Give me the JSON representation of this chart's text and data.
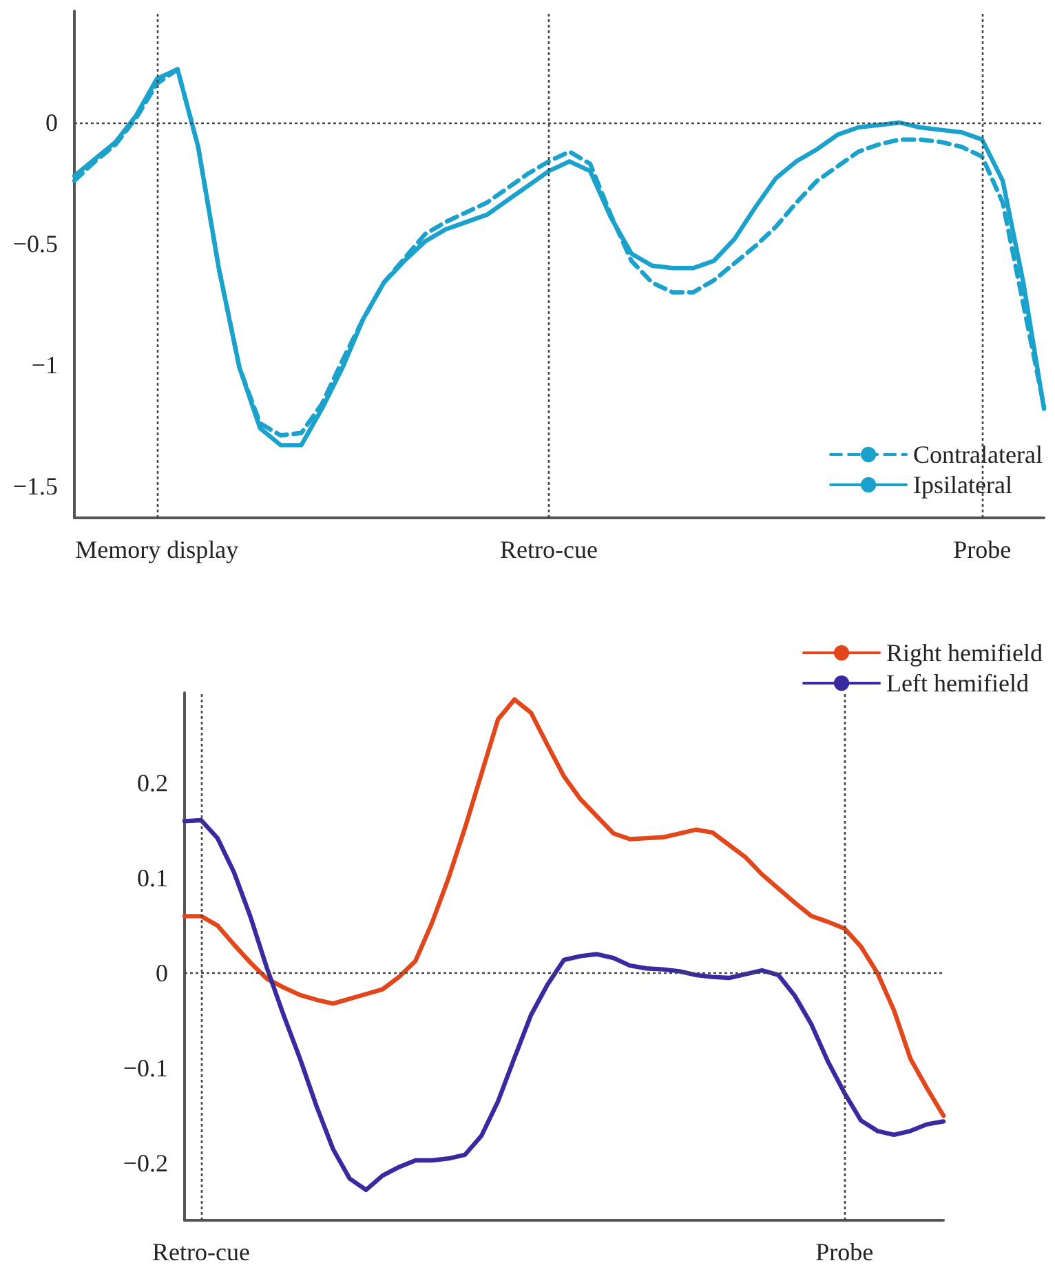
{
  "chart_data": [
    {
      "type": "line",
      "ylim": [
        -1.63,
        0.46
      ],
      "yticks": [
        {
          "value": -1.5,
          "label": "−1.5"
        },
        {
          "value": -1,
          "label": "−1"
        },
        {
          "value": -0.5,
          "label": "−0.5"
        },
        0
      ],
      "grid": false,
      "marker": "none",
      "legend": "bottom right",
      "categories": [
        null,
        null,
        null,
        null,
        "Memory display",
        null,
        null,
        null,
        null,
        null,
        null,
        null,
        null,
        null,
        null,
        null,
        null,
        null,
        null,
        null,
        null,
        null,
        null,
        "Retro-cue",
        null,
        null,
        null,
        null,
        null,
        null,
        null,
        null,
        null,
        null,
        null,
        null,
        null,
        null,
        null,
        null,
        null,
        null,
        null,
        null,
        "Probe",
        null,
        null,
        null
      ],
      "ref_lines": [
        {
          "axis": "x",
          "value": "Memory display"
        },
        {
          "axis": "x",
          "value": "Retro-cue"
        },
        {
          "axis": "x",
          "value": "Probe"
        },
        {
          "axis": "y",
          "value": 0
        }
      ],
      "series": [
        {
          "name": "Contralateral",
          "color": "#1aa2cd",
          "line_style": "dashed",
          "values": [
            -0.24,
            -0.16,
            -0.09,
            0.02,
            0.16,
            0.22,
            -0.1,
            -0.6,
            -1.01,
            -1.24,
            -1.29,
            -1.28,
            -1.16,
            -0.98,
            -0.81,
            -0.66,
            -0.56,
            -0.46,
            -0.41,
            -0.37,
            -0.33,
            -0.27,
            -0.21,
            -0.16,
            -0.12,
            -0.17,
            -0.38,
            -0.57,
            -0.66,
            -0.7,
            -0.7,
            -0.65,
            -0.58,
            -0.51,
            -0.43,
            -0.33,
            -0.24,
            -0.18,
            -0.12,
            -0.09,
            -0.07,
            -0.07,
            -0.08,
            -0.1,
            -0.14,
            -0.33,
            -0.75,
            -1.17
          ]
        },
        {
          "name": "Ipsilateral",
          "color": "#1aa2cd",
          "line_style": "solid",
          "values": [
            -0.22,
            -0.15,
            -0.08,
            0.03,
            0.18,
            0.22,
            -0.1,
            -0.6,
            -1.01,
            -1.26,
            -1.33,
            -1.33,
            -1.18,
            -1.01,
            -0.81,
            -0.66,
            -0.57,
            -0.49,
            -0.44,
            -0.41,
            -0.38,
            -0.32,
            -0.26,
            -0.2,
            -0.16,
            -0.2,
            -0.39,
            -0.54,
            -0.59,
            -0.6,
            -0.6,
            -0.57,
            -0.48,
            -0.35,
            -0.23,
            -0.16,
            -0.11,
            -0.05,
            -0.02,
            -0.01,
            0,
            -0.02,
            -0.03,
            -0.04,
            -0.07,
            -0.24,
            -0.66,
            -1.18
          ]
        }
      ]
    },
    {
      "type": "line",
      "ylim": [
        -0.26,
        0.295
      ],
      "yticks": [
        {
          "value": -0.2,
          "label": "−0.2"
        },
        {
          "value": -0.1,
          "label": "−0.1"
        },
        0,
        0.1,
        0.2
      ],
      "grid": false,
      "marker": "none",
      "legend": "top right",
      "categories": [
        null,
        "Retro-cue",
        null,
        null,
        null,
        null,
        null,
        null,
        null,
        null,
        null,
        null,
        null,
        null,
        null,
        null,
        null,
        null,
        null,
        null,
        null,
        null,
        null,
        null,
        null,
        null,
        null,
        null,
        null,
        null,
        null,
        null,
        null,
        null,
        null,
        null,
        null,
        null,
        null,
        null,
        "Probe",
        null,
        null,
        null,
        null,
        null,
        null
      ],
      "ref_lines": [
        {
          "axis": "x",
          "value": "Retro-cue"
        },
        {
          "axis": "x",
          "value": "Probe"
        },
        {
          "axis": "y",
          "value": 0
        }
      ],
      "series": [
        {
          "name": "Right hemifield",
          "color": "#e2461b",
          "line_style": "solid",
          "values": [
            0.06,
            0.06,
            0.05,
            0.03,
            0.011,
            -0.006,
            -0.015,
            -0.023,
            -0.028,
            -0.032,
            -0.027,
            -0.022,
            -0.017,
            -0.004,
            0.013,
            0.053,
            0.1,
            0.153,
            0.21,
            0.267,
            0.288,
            0.274,
            0.24,
            0.207,
            0.183,
            0.165,
            0.147,
            0.141,
            0.142,
            0.143,
            0.147,
            0.151,
            0.148,
            0.135,
            0.122,
            0.104,
            0.089,
            0.074,
            0.06,
            0.054,
            0.047,
            0.028,
            0,
            -0.039,
            -0.09,
            -0.121,
            -0.15
          ]
        },
        {
          "name": "Left hemifield",
          "color": "#3a2aa0",
          "line_style": "solid",
          "values": [
            0.16,
            0.161,
            0.142,
            0.106,
            0.059,
            0.005,
            -0.044,
            -0.09,
            -0.14,
            -0.185,
            -0.216,
            -0.228,
            -0.213,
            -0.204,
            -0.197,
            -0.197,
            -0.195,
            -0.191,
            -0.171,
            -0.135,
            -0.089,
            -0.044,
            -0.012,
            0.014,
            0.018,
            0.02,
            0.016,
            0.008,
            0.005,
            0.004,
            0.002,
            -0.002,
            -0.004,
            -0.005,
            -0.001,
            0.003,
            -0.002,
            -0.024,
            -0.054,
            -0.093,
            -0.126,
            -0.155,
            -0.166,
            -0.17,
            -0.166,
            -0.159,
            -0.156
          ]
        }
      ]
    }
  ]
}
